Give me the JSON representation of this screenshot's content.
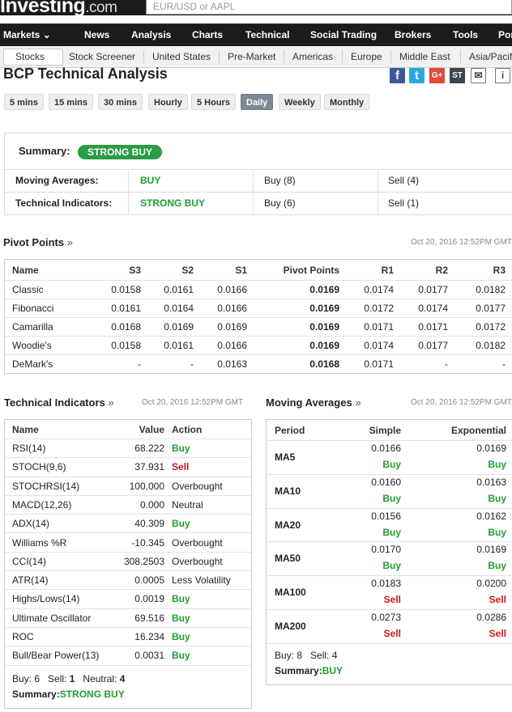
{
  "header": {
    "logo_text": "Investing",
    "logo_suffix": ".com",
    "search_placeholder": "EUR/USD or AAPL"
  },
  "nav": [
    "Markets ⌄",
    "News",
    "Analysis",
    "Charts",
    "Technical",
    "Social Trading",
    "Brokers",
    "Tools",
    "Por"
  ],
  "subnav": [
    "Stocks",
    "Stock Screener",
    "United States",
    "Pre-Market",
    "Americas",
    "Europe",
    "Middle East",
    "Asia/Pacif"
  ],
  "page_title": "BCP Technical Analysis",
  "share_icons": [
    {
      "name": "facebook",
      "glyph": "f",
      "color": "#3b5998"
    },
    {
      "name": "twitter",
      "glyph": "t",
      "color": "#2aa9e0"
    },
    {
      "name": "google-plus",
      "glyph": "G+",
      "color": "#dd4b39"
    },
    {
      "name": "stocktwits",
      "glyph": "ST",
      "color": "#3a4650"
    },
    {
      "name": "email",
      "glyph": "✉",
      "color": "#ffffff"
    },
    {
      "name": "info",
      "glyph": "i",
      "color": "#ffffff"
    }
  ],
  "timeframes": [
    "5 mins",
    "15 mins",
    "30 mins",
    "Hourly",
    "5 Hours",
    "Daily",
    "Weekly",
    "Monthly"
  ],
  "active_timeframe": "Daily",
  "summary": {
    "label": "Summary:",
    "badge": "STRONG BUY",
    "rows": [
      {
        "label": "Moving Averages:",
        "signal": "BUY",
        "buy": "Buy (8)",
        "sell": "Sell (4)"
      },
      {
        "label": "Technical Indicators:",
        "signal": "STRONG BUY",
        "buy": "Buy (6)",
        "sell": "Sell (1)"
      }
    ]
  },
  "pivot": {
    "title": "Pivot Points",
    "raquo": "»",
    "timestamp": "Oct 20, 2016 12:52PM GMT",
    "headers": [
      "Name",
      "S3",
      "S2",
      "S1",
      "Pivot Points",
      "R1",
      "R2",
      "R3"
    ],
    "rows": [
      [
        "Classic",
        "0.0158",
        "0.0161",
        "0.0166",
        "0.0169",
        "0.0174",
        "0.0177",
        "0.0182"
      ],
      [
        "Fibonacci",
        "0.0161",
        "0.0164",
        "0.0166",
        "0.0169",
        "0.0172",
        "0.0174",
        "0.0177"
      ],
      [
        "Camarilla",
        "0.0168",
        "0.0169",
        "0.0169",
        "0.0169",
        "0.0171",
        "0.0171",
        "0.0172"
      ],
      [
        "Woodie's",
        "0.0158",
        "0.0161",
        "0.0166",
        "0.0169",
        "0.0174",
        "0.0177",
        "0.0182"
      ],
      [
        "DeMark's",
        "-",
        "-",
        "0.0163",
        "0.0168",
        "0.0171",
        "-",
        "-"
      ]
    ]
  },
  "indicators": {
    "title": "Technical Indicators",
    "raquo": "»",
    "timestamp": "Oct 20, 2016 12:52PM GMT",
    "headers": [
      "Name",
      "Value",
      "Action"
    ],
    "rows": [
      [
        "RSI(14)",
        "68.222",
        "Buy"
      ],
      [
        "STOCH(9,6)",
        "37.931",
        "Sell"
      ],
      [
        "STOCHRSI(14)",
        "100.000",
        "Overbought"
      ],
      [
        "MACD(12,26)",
        "0.000",
        "Neutral"
      ],
      [
        "ADX(14)",
        "40.309",
        "Buy"
      ],
      [
        "Williams %R",
        "-10.345",
        "Overbought"
      ],
      [
        "CCI(14)",
        "308.2503",
        "Overbought"
      ],
      [
        "ATR(14)",
        "0.0005",
        "Less Volatility"
      ],
      [
        "Highs/Lows(14)",
        "0.0019",
        "Buy"
      ],
      [
        "Ultimate Oscillator",
        "69.516",
        "Buy"
      ],
      [
        "ROC",
        "16.234",
        "Buy"
      ],
      [
        "Bull/Bear Power(13)",
        "0.0031",
        "Buy"
      ]
    ],
    "footer": {
      "buy_label": "Buy:",
      "buy": "6",
      "sell_label": "Sell:",
      "sell": "1",
      "neutral_label": "Neutral:",
      "neutral": "4",
      "summary_label": "Summary:",
      "summary": "STRONG BUY"
    }
  },
  "moving_averages": {
    "title": "Moving Averages",
    "raquo": "»",
    "timestamp": "Oct 20, 2016 12:52PM GMT",
    "headers": [
      "Period",
      "Simple",
      "Exponential"
    ],
    "rows": [
      {
        "period": "MA5",
        "simple": "0.0166",
        "simple_action": "Buy",
        "exp": "0.0169",
        "exp_action": "Buy"
      },
      {
        "period": "MA10",
        "simple": "0.0160",
        "simple_action": "Buy",
        "exp": "0.0163",
        "exp_action": "Buy"
      },
      {
        "period": "MA20",
        "simple": "0.0156",
        "simple_action": "Buy",
        "exp": "0.0162",
        "exp_action": "Buy"
      },
      {
        "period": "MA50",
        "simple": "0.0170",
        "simple_action": "Buy",
        "exp": "0.0169",
        "exp_action": "Buy"
      },
      {
        "period": "MA100",
        "simple": "0.0183",
        "simple_action": "Sell",
        "exp": "0.0200",
        "exp_action": "Sell"
      },
      {
        "period": "MA200",
        "simple": "0.0273",
        "simple_action": "Sell",
        "exp": "0.0286",
        "exp_action": "Sell"
      }
    ],
    "footer": {
      "buy_label": "Buy:",
      "buy": "8",
      "sell_label": "Sell:",
      "sell": "4",
      "summary_label": "Summary:",
      "summary": "BUY"
    }
  },
  "colors": {
    "buy": "#1f9e30",
    "sell": "#d0161d",
    "badge": "#2a9c46",
    "nav_bg": "#1c1c1c"
  }
}
